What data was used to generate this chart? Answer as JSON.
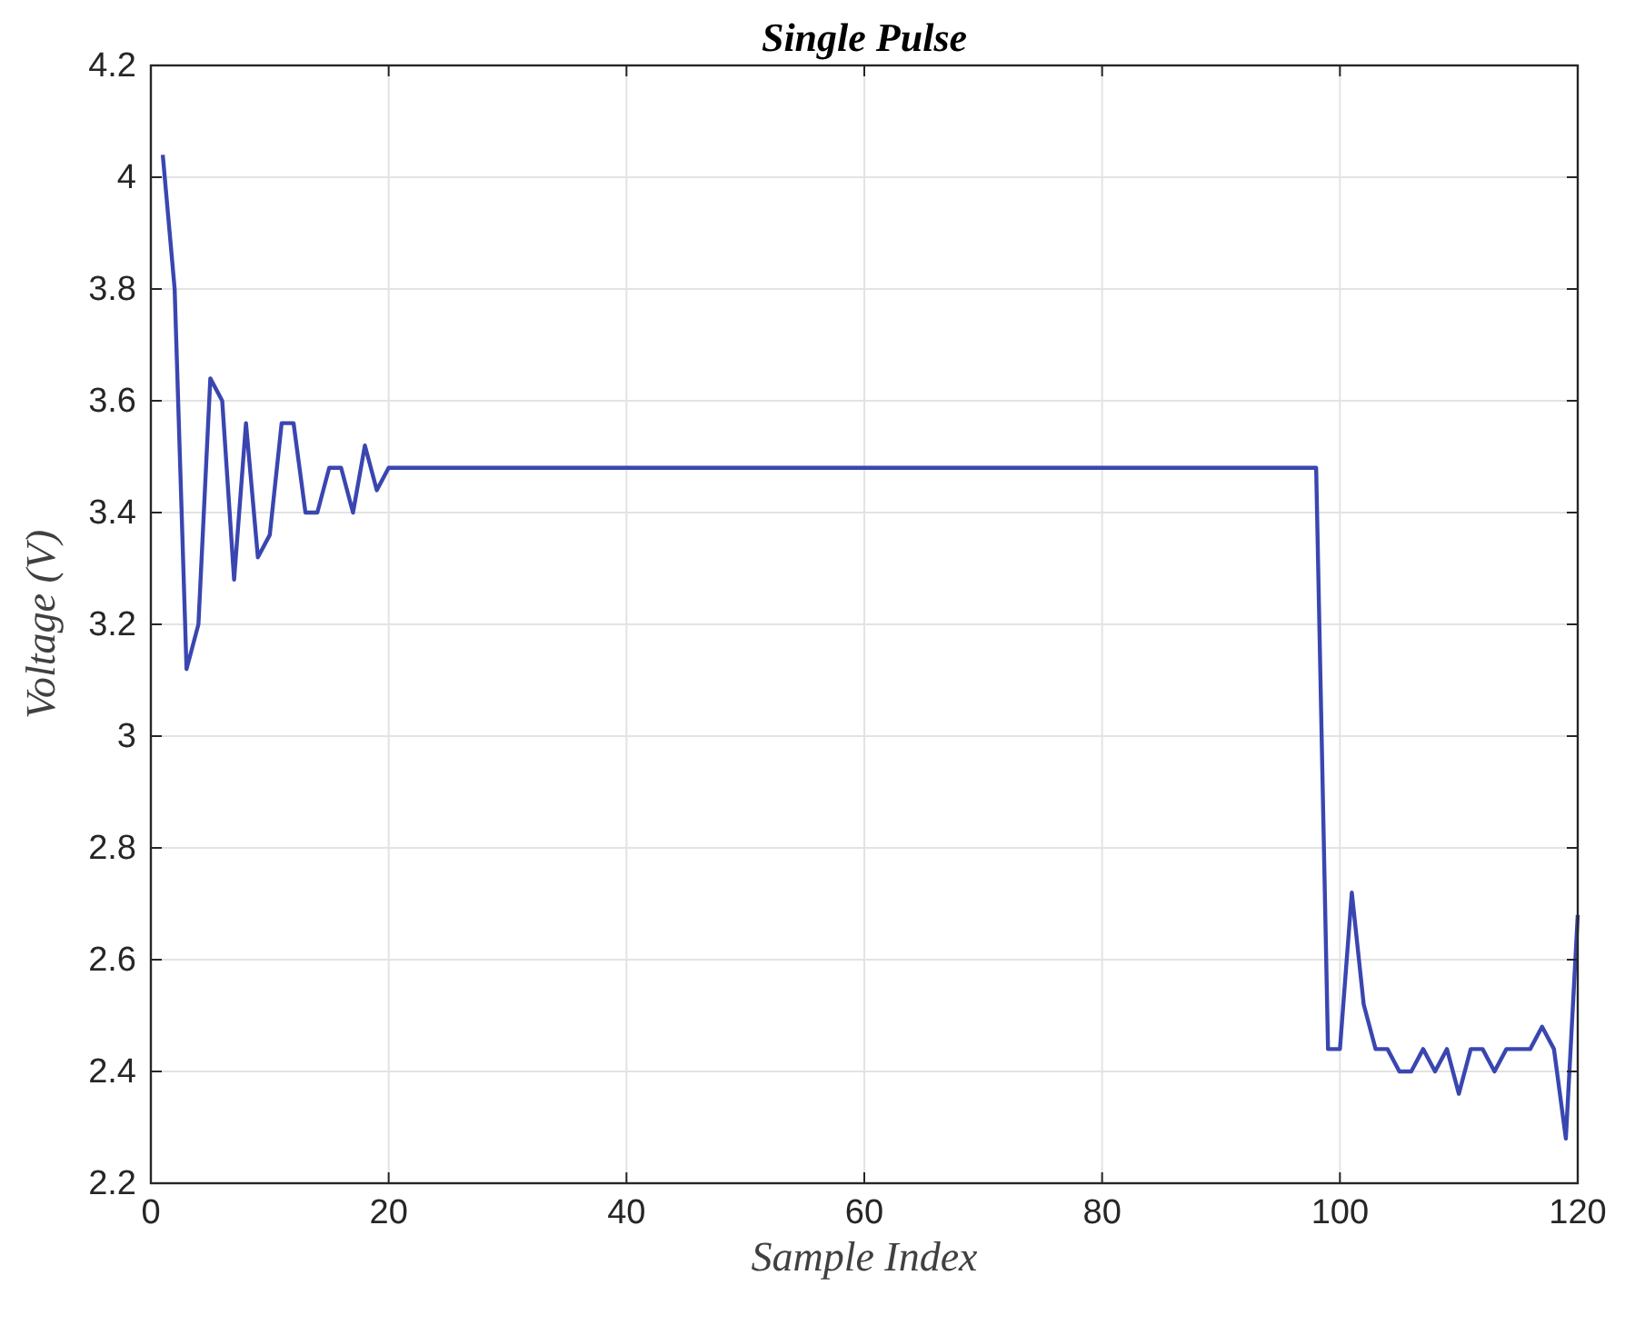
{
  "chart_data": {
    "type": "line",
    "title": "Single Pulse",
    "xlabel": "Sample Index",
    "ylabel": "Voltage (V)",
    "xlim": [
      0,
      120
    ],
    "xticks": [
      0,
      20,
      40,
      60,
      80,
      100,
      120
    ],
    "ylim": [
      2.2,
      4.2
    ],
    "yticks": [
      2.2,
      2.4,
      2.6,
      2.8,
      3,
      3.2,
      3.4,
      3.6,
      3.8,
      4,
      4.2
    ],
    "grid": true,
    "series": [
      {
        "color": "#3a46b0",
        "x": [
          1,
          2,
          3,
          4,
          5,
          6,
          7,
          8,
          9,
          10,
          11,
          12,
          13,
          14,
          15,
          16,
          17,
          18,
          19,
          20,
          98,
          99,
          100,
          101,
          102,
          103,
          104,
          105,
          106,
          107,
          108,
          109,
          110,
          111,
          112,
          113,
          114,
          115,
          116,
          117,
          118,
          119,
          120
        ],
        "values": [
          4.04,
          3.8,
          3.12,
          3.2,
          3.64,
          3.6,
          3.28,
          3.56,
          3.32,
          3.36,
          3.56,
          3.56,
          3.4,
          3.4,
          3.48,
          3.48,
          3.4,
          3.52,
          3.44,
          3.48,
          3.48,
          2.44,
          2.44,
          2.72,
          2.52,
          2.44,
          2.44,
          2.4,
          2.4,
          2.44,
          2.4,
          2.44,
          2.36,
          2.44,
          2.44,
          2.4,
          2.44,
          2.44,
          2.44,
          2.48,
          2.44,
          2.28,
          2.68
        ]
      }
    ]
  }
}
